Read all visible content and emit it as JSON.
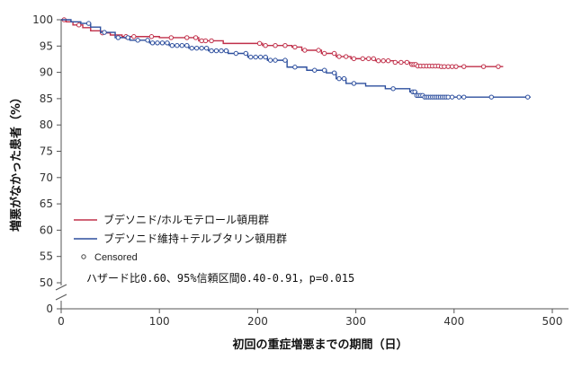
{
  "chart_data": {
    "type": "line",
    "subtype": "kaplan-meier",
    "ylabel": "増悪がなかった患者（%）",
    "xlabel": "初回の重症増悪までの期間（日）",
    "x_ticks": [
      0,
      100,
      200,
      300,
      400,
      500
    ],
    "y_ticks": [
      50,
      55,
      60,
      65,
      70,
      75,
      80,
      85,
      90,
      95,
      100
    ],
    "y_break_tick": 0,
    "xlim": [
      0,
      520
    ],
    "ylim": [
      50,
      100
    ],
    "y_axis_break": true,
    "legend_position": "bottom-left",
    "censored_label": "Censored",
    "annotation": "ハザード比0.60、95%信頼区間0.40-0.91，p=0.015",
    "series": [
      {
        "name": "ブデソニド/ホルモテロール頓用群",
        "color": "#c0304a",
        "steps": [
          [
            0,
            100
          ],
          [
            5,
            99.6
          ],
          [
            12,
            99.0
          ],
          [
            22,
            98.5
          ],
          [
            30,
            97.9
          ],
          [
            40,
            97.5
          ],
          [
            50,
            97.1
          ],
          [
            62,
            96.8
          ],
          [
            100,
            96.6
          ],
          [
            140,
            96.0
          ],
          [
            165,
            95.5
          ],
          [
            205,
            95.1
          ],
          [
            235,
            94.8
          ],
          [
            245,
            94.2
          ],
          [
            265,
            93.6
          ],
          [
            280,
            93.0
          ],
          [
            295,
            92.6
          ],
          [
            320,
            92.2
          ],
          [
            340,
            91.9
          ],
          [
            355,
            91.5
          ],
          [
            362,
            91.2
          ],
          [
            385,
            91.1
          ],
          [
            450,
            91.1
          ]
        ],
        "censored": [
          3,
          18,
          42,
          66,
          74,
          92,
          112,
          128,
          137,
          143,
          147,
          153,
          202,
          208,
          218,
          228,
          238,
          248,
          262,
          268,
          278,
          283,
          290,
          298,
          307,
          313,
          318,
          323,
          328,
          333,
          340,
          346,
          352,
          357,
          359,
          361,
          363,
          366,
          369,
          372,
          375,
          378,
          381,
          384,
          387,
          390,
          394,
          398,
          402,
          410,
          430,
          445
        ]
      },
      {
        "name": "ブデソニド維持＋テルブタリン頓用群",
        "color": "#2d4f9e",
        "steps": [
          [
            0,
            100
          ],
          [
            10,
            99.6
          ],
          [
            20,
            99.3
          ],
          [
            30,
            98.6
          ],
          [
            40,
            97.6
          ],
          [
            55,
            96.6
          ],
          [
            70,
            96.1
          ],
          [
            90,
            95.6
          ],
          [
            110,
            95.1
          ],
          [
            130,
            94.6
          ],
          [
            150,
            94.1
          ],
          [
            170,
            93.6
          ],
          [
            190,
            92.9
          ],
          [
            210,
            92.3
          ],
          [
            230,
            91.0
          ],
          [
            250,
            90.4
          ],
          [
            270,
            89.9
          ],
          [
            280,
            88.8
          ],
          [
            290,
            87.9
          ],
          [
            310,
            87.4
          ],
          [
            330,
            86.9
          ],
          [
            355,
            86.3
          ],
          [
            362,
            85.6
          ],
          [
            370,
            85.3
          ],
          [
            400,
            85.3
          ],
          [
            478,
            85.3
          ]
        ],
        "censored": [
          28,
          44,
          58,
          68,
          78,
          88,
          93,
          98,
          103,
          108,
          113,
          118,
          123,
          128,
          133,
          138,
          143,
          148,
          153,
          158,
          163,
          168,
          178,
          188,
          193,
          198,
          203,
          208,
          213,
          218,
          228,
          238,
          258,
          268,
          278,
          283,
          288,
          298,
          338,
          358,
          360,
          362,
          364,
          366,
          368,
          370,
          372,
          374,
          376,
          378,
          380,
          382,
          384,
          386,
          388,
          390,
          392,
          394,
          398,
          405,
          410,
          438,
          475
        ]
      }
    ]
  }
}
